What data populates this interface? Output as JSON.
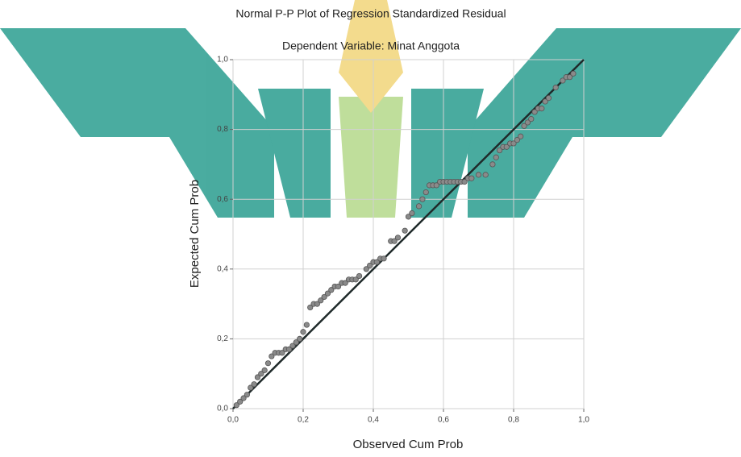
{
  "chart_data": {
    "type": "scatter",
    "title": "Normal P-P Plot of Regression Standardized Residual",
    "subtitle": "Dependent Variable: Minat Anggota",
    "x_label": "Observed Cum Prob",
    "y_label": "Expected Cum Prob",
    "xlim": [
      0,
      1
    ],
    "ylim": [
      0,
      1
    ],
    "xticks": [
      {
        "value": 0,
        "label": "0,0"
      },
      {
        "value": 0.2,
        "label": "0,2"
      },
      {
        "value": 0.4,
        "label": "0,4"
      },
      {
        "value": 0.6,
        "label": "0,6"
      },
      {
        "value": 0.8,
        "label": "0,8"
      },
      {
        "value": 1,
        "label": "1,0"
      }
    ],
    "yticks": [
      {
        "value": 0,
        "label": "0,0"
      },
      {
        "value": 0.2,
        "label": "0,2"
      },
      {
        "value": 0.4,
        "label": "0,4"
      },
      {
        "value": 0.6,
        "label": "0,6"
      },
      {
        "value": 0.8,
        "label": "0,8"
      },
      {
        "value": 1,
        "label": "1,0"
      }
    ],
    "grid": true,
    "color": "#8a8a8a",
    "line_color": "#1f2a2a",
    "x": [
      0.01,
      0.02,
      0.03,
      0.04,
      0.05,
      0.06,
      0.07,
      0.08,
      0.09,
      0.1,
      0.11,
      0.12,
      0.13,
      0.14,
      0.15,
      0.16,
      0.17,
      0.18,
      0.19,
      0.2,
      0.21,
      0.22,
      0.23,
      0.24,
      0.25,
      0.26,
      0.27,
      0.28,
      0.29,
      0.3,
      0.31,
      0.32,
      0.33,
      0.34,
      0.35,
      0.36,
      0.38,
      0.39,
      0.4,
      0.41,
      0.42,
      0.43,
      0.45,
      0.46,
      0.47,
      0.49,
      0.5,
      0.51,
      0.53,
      0.54,
      0.55,
      0.56,
      0.57,
      0.58,
      0.59,
      0.6,
      0.61,
      0.62,
      0.63,
      0.64,
      0.65,
      0.66,
      0.67,
      0.68,
      0.7,
      0.72,
      0.74,
      0.75,
      0.76,
      0.77,
      0.78,
      0.79,
      0.8,
      0.81,
      0.82,
      0.83,
      0.84,
      0.85,
      0.86,
      0.87,
      0.88,
      0.89,
      0.9,
      0.92,
      0.94,
      0.95,
      0.96,
      0.97
    ],
    "values": [
      0.01,
      0.02,
      0.03,
      0.04,
      0.06,
      0.07,
      0.09,
      0.1,
      0.11,
      0.13,
      0.15,
      0.16,
      0.16,
      0.16,
      0.17,
      0.17,
      0.18,
      0.19,
      0.2,
      0.22,
      0.24,
      0.29,
      0.3,
      0.3,
      0.31,
      0.32,
      0.33,
      0.34,
      0.35,
      0.35,
      0.36,
      0.36,
      0.37,
      0.37,
      0.37,
      0.38,
      0.4,
      0.41,
      0.42,
      0.42,
      0.43,
      0.43,
      0.48,
      0.48,
      0.49,
      0.51,
      0.55,
      0.56,
      0.58,
      0.6,
      0.62,
      0.64,
      0.64,
      0.64,
      0.65,
      0.65,
      0.65,
      0.65,
      0.65,
      0.65,
      0.65,
      0.65,
      0.66,
      0.66,
      0.67,
      0.67,
      0.7,
      0.72,
      0.74,
      0.75,
      0.75,
      0.76,
      0.76,
      0.77,
      0.78,
      0.81,
      0.82,
      0.83,
      0.85,
      0.86,
      0.86,
      0.88,
      0.89,
      0.92,
      0.94,
      0.95,
      0.95,
      0.96
    ]
  }
}
